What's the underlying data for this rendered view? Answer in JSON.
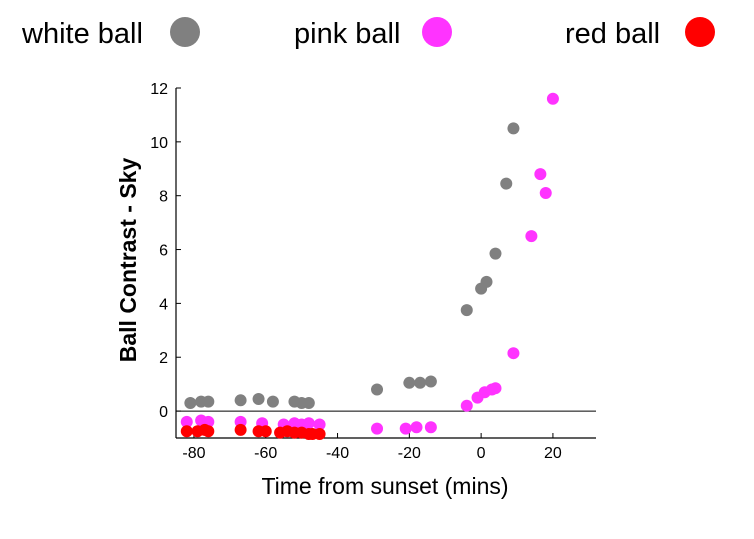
{
  "chart_data": {
    "type": "scatter",
    "title": "",
    "xlabel": "Time from sunset (mins)",
    "ylabel": "Ball Contrast - Sky",
    "xlim": [
      -85,
      32
    ],
    "ylim": [
      -1,
      12
    ],
    "xticks": [
      "-80",
      "-60",
      "-40",
      "-20",
      "0",
      "20"
    ],
    "yticks": [
      "0",
      "2",
      "4",
      "6",
      "8",
      "10",
      "12"
    ],
    "zero_line": 0,
    "grid": false,
    "legend": "top",
    "series": [
      {
        "name": "white ball",
        "color": "#808080",
        "points": [
          [
            -81,
            0.3
          ],
          [
            -78,
            0.35
          ],
          [
            -76,
            0.35
          ],
          [
            -67,
            0.4
          ],
          [
            -62,
            0.45
          ],
          [
            -58,
            0.35
          ],
          [
            -52,
            0.35
          ],
          [
            -50,
            0.3
          ],
          [
            -48,
            0.3
          ],
          [
            -29,
            0.8
          ],
          [
            -20,
            1.05
          ],
          [
            -17,
            1.05
          ],
          [
            -14,
            1.1
          ],
          [
            -4,
            3.75
          ],
          [
            0,
            4.55
          ],
          [
            1.5,
            4.8
          ],
          [
            4,
            5.85
          ],
          [
            7,
            8.45
          ],
          [
            9,
            10.5
          ]
        ]
      },
      {
        "name": "pink ball",
        "color": "#ff33ff",
        "points": [
          [
            -82,
            -0.4
          ],
          [
            -78,
            -0.35
          ],
          [
            -76,
            -0.4
          ],
          [
            -67,
            -0.4
          ],
          [
            -61,
            -0.45
          ],
          [
            -55,
            -0.5
          ],
          [
            -52,
            -0.45
          ],
          [
            -50,
            -0.5
          ],
          [
            -48,
            -0.45
          ],
          [
            -45,
            -0.5
          ],
          [
            -29,
            -0.65
          ],
          [
            -21,
            -0.65
          ],
          [
            -18,
            -0.6
          ],
          [
            -14,
            -0.6
          ],
          [
            -4,
            0.2
          ],
          [
            -1,
            0.5
          ],
          [
            1,
            0.7
          ],
          [
            3,
            0.8
          ],
          [
            4,
            0.85
          ],
          [
            9,
            2.15
          ],
          [
            14,
            6.5
          ],
          [
            16.5,
            8.8
          ],
          [
            18,
            8.1
          ],
          [
            20,
            11.6
          ]
        ]
      },
      {
        "name": "red ball",
        "color": "#ff0000",
        "points": [
          [
            -82,
            -0.75
          ],
          [
            -79,
            -0.75
          ],
          [
            -77,
            -0.7
          ],
          [
            -76,
            -0.75
          ],
          [
            -67,
            -0.7
          ],
          [
            -62,
            -0.75
          ],
          [
            -60,
            -0.75
          ],
          [
            -56,
            -0.8
          ],
          [
            -54,
            -0.75
          ],
          [
            -52,
            -0.8
          ],
          [
            -50,
            -0.8
          ],
          [
            -48,
            -0.85
          ],
          [
            -47,
            -0.85
          ],
          [
            -45,
            -0.85
          ]
        ]
      }
    ]
  }
}
